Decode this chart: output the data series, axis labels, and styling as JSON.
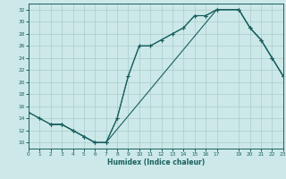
{
  "xlabel": "Humidex (Indice chaleur)",
  "bg_color": "#cce8e8",
  "line_color": "#1a6060",
  "grid_color": "#aacccc",
  "line1_x": [
    0,
    1,
    2,
    3,
    4,
    5,
    6,
    7,
    8,
    9,
    10,
    11,
    12,
    13,
    14,
    15,
    16,
    17,
    19,
    20,
    21,
    22,
    23
  ],
  "line1_y": [
    15,
    14,
    13,
    13,
    12,
    11,
    10,
    10,
    14,
    21,
    26,
    26,
    27,
    28,
    29,
    31,
    31,
    32,
    32,
    29,
    27,
    24,
    21
  ],
  "line2_x": [
    0,
    1,
    2,
    3,
    4,
    5,
    6,
    7,
    17,
    19,
    20,
    21,
    22,
    23
  ],
  "line2_y": [
    15,
    14,
    13,
    13,
    12,
    11,
    10,
    10,
    32,
    32,
    29,
    27,
    24,
    21
  ],
  "line3_x": [
    2,
    3,
    4,
    5,
    6,
    7,
    8,
    9,
    10,
    11,
    12,
    13,
    14,
    15,
    16,
    17,
    19,
    20,
    21,
    22,
    23
  ],
  "line3_y": [
    13,
    13,
    12,
    11,
    10,
    10,
    14,
    21,
    26,
    26,
    27,
    28,
    29,
    31,
    31,
    32,
    32,
    29,
    27,
    24,
    21
  ],
  "xlim": [
    0,
    23
  ],
  "ylim": [
    9,
    33
  ],
  "xticks": [
    0,
    1,
    2,
    3,
    4,
    5,
    6,
    7,
    8,
    9,
    10,
    11,
    12,
    13,
    14,
    15,
    16,
    17,
    19,
    20,
    21,
    22,
    23
  ],
  "yticks": [
    10,
    12,
    14,
    16,
    18,
    20,
    22,
    24,
    26,
    28,
    30,
    32
  ]
}
